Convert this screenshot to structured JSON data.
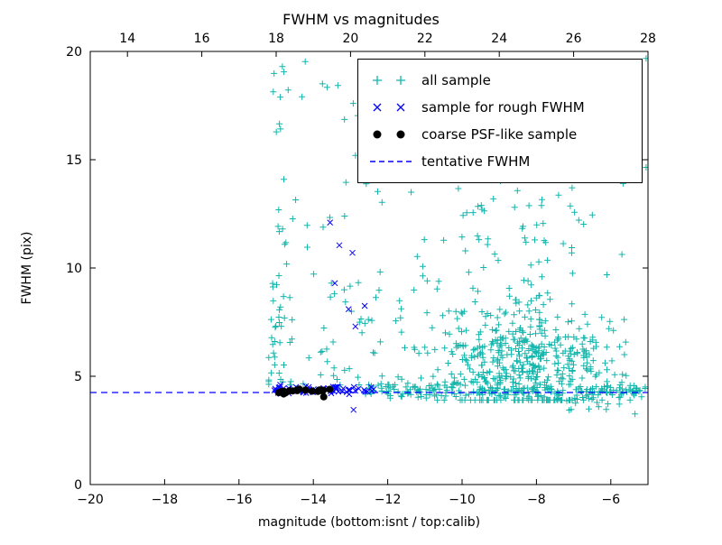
{
  "figure": {
    "title": "FWHM vs magnitudes",
    "xlabel": "magnitude (bottom:isnt / top:calib)",
    "ylabel": "FWHM (pix)",
    "background": "#ffffff"
  },
  "chart_data": {
    "type": "scatter",
    "title": "FWHM vs magnitudes",
    "xlabel": "magnitude (bottom:isnt / top:calib)",
    "ylabel": "FWHM (pix)",
    "axes": {
      "xlim_bottom": [
        -20,
        -5
      ],
      "xlim_top": [
        13,
        28
      ],
      "ylim": [
        0,
        20
      ],
      "xticks_bottom": [
        -20,
        -18,
        -16,
        -14,
        -12,
        -10,
        -8,
        -6
      ],
      "xticks_top": [
        14,
        16,
        18,
        20,
        22,
        24,
        26,
        28
      ],
      "yticks": [
        0,
        5,
        10,
        15,
        20
      ],
      "grid": false,
      "tick_direction": "in",
      "legend_position": "upper right"
    },
    "tentative_fwhm": 4.25,
    "line_color": "#0000ff",
    "series": [
      {
        "id": "all-sample",
        "name": "all sample",
        "marker": "plus",
        "color": "#10b5ab",
        "clusters": [
          {
            "n": 26,
            "x": {
              "dist": "uniform",
              "a": -15.15,
              "b": -14.7
            },
            "y": {
              "dist": "uniform",
              "a": 4.3,
              "b": 9.5
            }
          },
          {
            "n": 17,
            "x": {
              "dist": "uniform",
              "a": -15.1,
              "b": -14.65
            },
            "y": {
              "dist": "uniform",
              "a": 9.5,
              "b": 19.6
            }
          },
          {
            "n": 85,
            "x": {
              "dist": "normal",
              "m": -13.1,
              "s": 1.15,
              "min": -15.2,
              "max": -10.6
            },
            "y": {
              "dist": "powerbias",
              "a": 4.6,
              "b": 19.8,
              "p": 2.0
            }
          },
          {
            "n": 430,
            "x": {
              "dist": "normal",
              "m": -8.3,
              "s": 1.15,
              "min": -11.9,
              "max": -5.05
            },
            "y": {
              "dist": "normal",
              "m": 5.7,
              "s": 1.4,
              "min": 3.9,
              "max": 11.5
            }
          },
          {
            "n": 150,
            "x": {
              "dist": "normal",
              "m": -8.6,
              "s": 1.7,
              "min": -12.2,
              "max": -5.05
            },
            "y": {
              "dist": "powerbias",
              "a": 6.0,
              "b": 19.8,
              "p": 1.6
            }
          },
          {
            "n": 190,
            "x": {
              "dist": "uniform",
              "a": -12.6,
              "b": -5.05
            },
            "y": {
              "dist": "normal",
              "m": 4.3,
              "s": 0.16,
              "min": 3.4,
              "max": 5.0
            }
          },
          {
            "n": 25,
            "x": {
              "dist": "uniform",
              "a": -7.5,
              "b": -5.05
            },
            "y": {
              "dist": "normal",
              "m": 3.95,
              "s": 0.3,
              "min": 3.2,
              "max": 4.6
            }
          }
        ],
        "points": []
      },
      {
        "id": "rough-fwhm-sample",
        "name": "sample for rough FWHM",
        "marker": "x",
        "color": "#0000ff",
        "clusters": [
          {
            "n": 55,
            "x": {
              "dist": "uniform",
              "a": -15.05,
              "b": -12.3
            },
            "y": {
              "dist": "normal",
              "m": 4.38,
              "s": 0.1,
              "min": 4.05,
              "max": 4.75
            }
          }
        ],
        "points": [
          [
            -13.55,
            12.1
          ],
          [
            -13.3,
            11.05
          ],
          [
            -12.95,
            10.7
          ],
          [
            -13.42,
            9.3
          ],
          [
            -13.05,
            8.1
          ],
          [
            -12.62,
            8.25
          ],
          [
            -12.87,
            7.3
          ],
          [
            -12.92,
            3.45
          ]
        ]
      },
      {
        "id": "coarse-psf-sample",
        "name": "coarse PSF-like sample",
        "marker": "dot",
        "color": "#000000",
        "clusters": [
          {
            "n": 19,
            "x": {
              "dist": "uniform",
              "a": -15.0,
              "b": -13.55
            },
            "y": {
              "dist": "normal",
              "m": 4.32,
              "s": 0.06,
              "min": 4.15,
              "max": 4.5
            }
          }
        ],
        "points": [
          [
            -13.72,
            4.05
          ]
        ]
      }
    ]
  },
  "legend": {
    "entries": [
      {
        "label": "all sample",
        "marker": "plus",
        "color": "#10b5ab"
      },
      {
        "label": "sample for rough FWHM",
        "marker": "x",
        "color": "#0000ff"
      },
      {
        "label": "coarse PSF-like sample",
        "marker": "dot",
        "color": "#000000"
      },
      {
        "label": "tentative FWHM",
        "marker": "dashed-line",
        "color": "#0000ff"
      }
    ]
  }
}
